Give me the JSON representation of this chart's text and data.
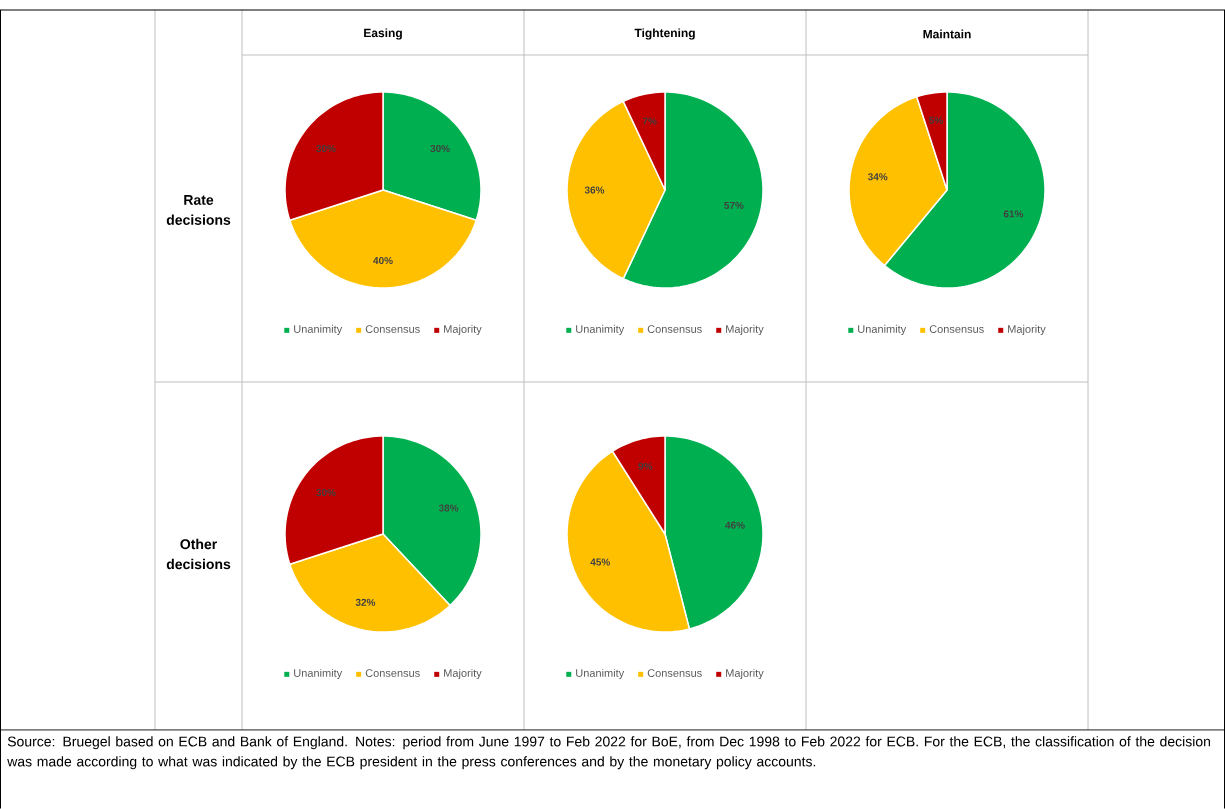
{
  "chart_data": [
    {
      "type": "pie",
      "title": "Easing",
      "ylabel": "Rate decisions",
      "categories": [
        "Unanimity",
        "Consensus",
        "Majority"
      ],
      "values": [
        30,
        40,
        30
      ],
      "colors": [
        "#00b050",
        "#ffc000",
        "#c00000"
      ],
      "value_labels": [
        "30%",
        "40%",
        "30%"
      ],
      "legend": "bottom"
    },
    {
      "type": "pie",
      "title": "Tightening",
      "categories": [
        "Unanimity",
        "Consensus",
        "Majority"
      ],
      "values": [
        57,
        36,
        7
      ],
      "colors": [
        "#00b050",
        "#ffc000",
        "#c00000"
      ],
      "value_labels": [
        "57%",
        "36%",
        "7%"
      ],
      "legend": "bottom"
    },
    {
      "type": "pie",
      "title": "Maintain",
      "categories": [
        "Unanimity",
        "Consensus",
        "Majority"
      ],
      "values": [
        61,
        34,
        5
      ],
      "colors": [
        "#00b050",
        "#ffc000",
        "#c00000"
      ],
      "value_labels": [
        "61%",
        "34%",
        "5%"
      ],
      "legend": "bottom"
    },
    {
      "type": "pie",
      "ylabel": "Other decisions",
      "categories": [
        "Unanimity",
        "Consensus",
        "Majority"
      ],
      "values": [
        38,
        32,
        30
      ],
      "colors": [
        "#00b050",
        "#ffc000",
        "#c00000"
      ],
      "value_labels": [
        "38%",
        "32%",
        "30%"
      ],
      "legend": "bottom"
    },
    {
      "type": "pie",
      "categories": [
        "Unanimity",
        "Consensus",
        "Majority"
      ],
      "values": [
        46,
        45,
        9
      ],
      "colors": [
        "#00b050",
        "#ffc000",
        "#c00000"
      ],
      "value_labels": [
        "46%",
        "45%",
        "9%"
      ],
      "legend": "bottom",
      "annotations": [
        "Source: Bruegel based on ECB and Bank of England. Notes: period from June 1997 to Feb 2022 for BoE, from Dec 1998 to Feb 2022 for ECB. For the ECB, the classification of the decision was made according to what was indicated by the ECB president in the press conferences and by the monetary policy accounts."
      ]
    }
  ]
}
